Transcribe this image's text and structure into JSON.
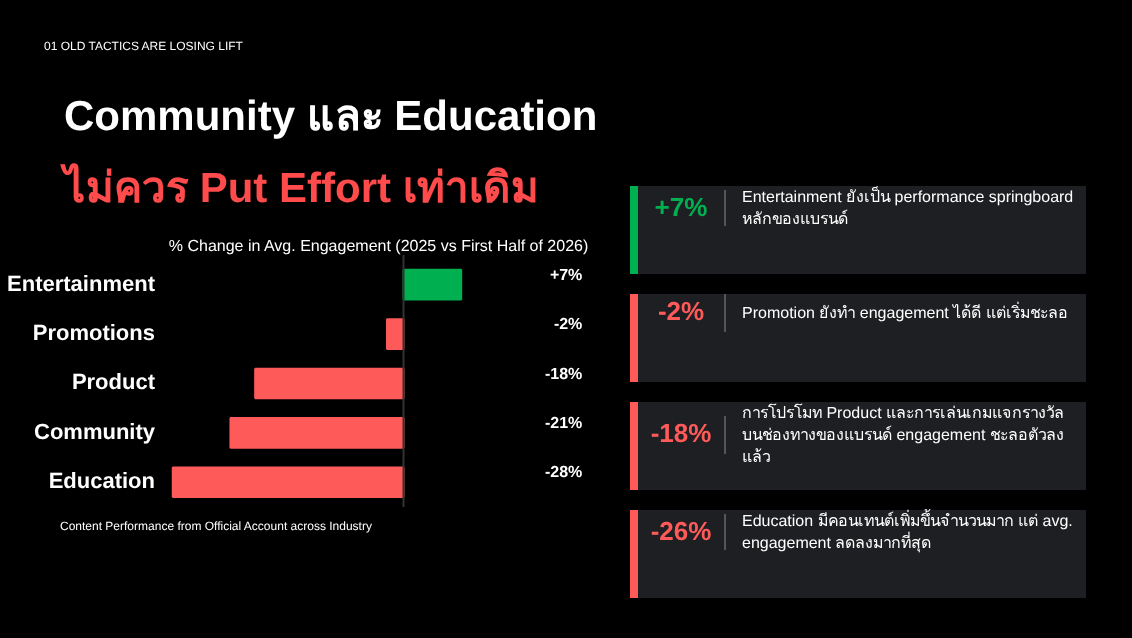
{
  "chart_data": {
    "type": "bar",
    "orientation": "horizontal",
    "title": "Community และ Education",
    "subtitle": "ไม่ควร Put Effort เท่าเดิม",
    "xlabel": "% Change in Avg. Engagement (2025 vs First Half of 2026)",
    "categories": [
      "Entertainment",
      "Promotions",
      "Product",
      "Community",
      "Education"
    ],
    "values": [
      7,
      -2,
      -18,
      -21,
      -28
    ],
    "colors": [
      "#00b050",
      "#ff5a5a",
      "#ff5a5a",
      "#ff5a5a",
      "#ff5a5a"
    ],
    "value_labels": [
      "+7%",
      "-2%",
      "-18%",
      "-21%",
      "-28%"
    ],
    "grid": false,
    "annotations": [
      "01 OLD TACTICS ARE LOSING LIFT",
      "+7%",
      "Entertainment ยังเป็น performance springboard หลักของแบรนด์",
      "-2%",
      "Promotion ยังทำ engagement ได้ดี แต่เริ่มชะลอ",
      "-18%",
      "การโปรโมท Product และการเล่นเกมแจกรางวัล บนช่องทางของแบรนด์ engagement ชะลอตัวลงแล้ว",
      "-26%",
      "Education มีคอนเทนต์เพิ่มขึ้นจำนวนมาก แต่ avg. engagement ลดลงมากที่สุด",
      "Content Performance from Official Account across Industry"
    ]
  }
}
